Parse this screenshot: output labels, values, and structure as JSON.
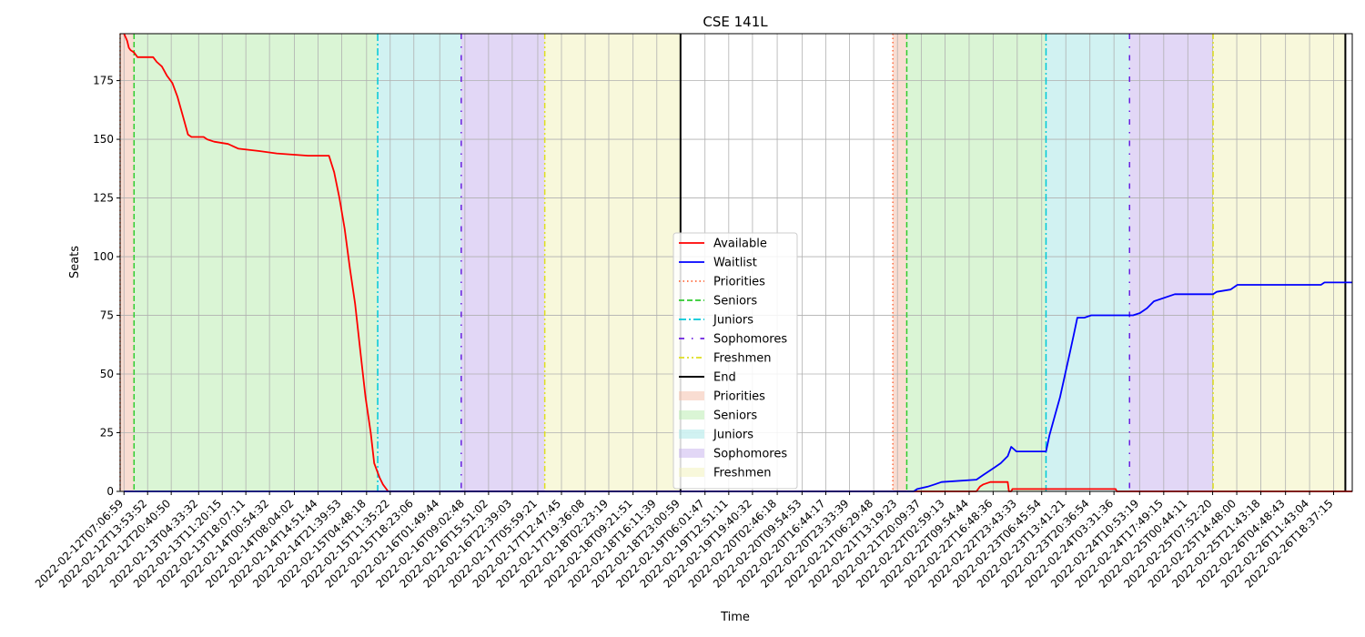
{
  "chart_data": {
    "type": "line",
    "title": "CSE 141L",
    "xlabel": "Time",
    "ylabel": "Seats",
    "ylim": [
      0,
      195
    ],
    "xlim": [
      "2022-02-12T06:00:00",
      "2022-02-26T23:59:00"
    ],
    "yticks": [
      0,
      25,
      50,
      75,
      100,
      125,
      150,
      175
    ],
    "grid": true,
    "legend_position": "lower center",
    "xticks": [
      "2022-02-12T07:06:59",
      "2022-02-12T13:53:52",
      "2022-02-12T20:40:50",
      "2022-02-13T04:33:32",
      "2022-02-13T11:20:15",
      "2022-02-13T18:07:11",
      "2022-02-14T00:54:32",
      "2022-02-14T08:04:02",
      "2022-02-14T14:51:44",
      "2022-02-14T21:39:53",
      "2022-02-15T04:48:18",
      "2022-02-15T11:35:22",
      "2022-02-15T18:23:06",
      "2022-02-16T01:49:44",
      "2022-02-16T09:02:48",
      "2022-02-16T15:51:02",
      "2022-02-16T22:39:03",
      "2022-02-17T05:59:21",
      "2022-02-17T12:47:45",
      "2022-02-17T19:36:08",
      "2022-02-18T02:23:19",
      "2022-02-18T09:21:51",
      "2022-02-18T16:11:39",
      "2022-02-18T23:00:59",
      "2022-02-19T06:01:47",
      "2022-02-19T12:51:11",
      "2022-02-19T19:40:32",
      "2022-02-20T02:46:18",
      "2022-02-20T09:54:53",
      "2022-02-20T16:44:17",
      "2022-02-20T23:33:39",
      "2022-02-21T06:29:48",
      "2022-02-21T13:19:23",
      "2022-02-21T20:09:37",
      "2022-02-22T02:59:13",
      "2022-02-22T09:54:44",
      "2022-02-22T16:48:36",
      "2022-02-22T23:43:33",
      "2022-02-23T06:45:54",
      "2022-02-23T13:41:21",
      "2022-02-23T20:36:54",
      "2022-02-24T03:31:36",
      "2022-02-24T10:53:19",
      "2022-02-24T17:49:15",
      "2022-02-25T00:44:11",
      "2022-02-25T07:52:20",
      "2022-02-25T14:48:00",
      "2022-02-25T21:43:18",
      "2022-02-26T04:48:43",
      "2022-02-26T11:43:04",
      "2022-02-26T18:37:15"
    ],
    "regions": [
      {
        "name": "Priorities",
        "start": "2022-02-12T06:00:00",
        "end": "2022-02-12T10:00:00",
        "color": "#f4bba6"
      },
      {
        "name": "Seniors",
        "start": "2022-02-12T10:00:00",
        "end": "2022-02-15T08:00:00",
        "color": "#b5ecab"
      },
      {
        "name": "Juniors",
        "start": "2022-02-15T08:00:00",
        "end": "2022-02-16T08:00:00",
        "color": "#a3e6e6"
      },
      {
        "name": "Sophomores",
        "start": "2022-02-16T08:00:00",
        "end": "2022-02-17T08:00:00",
        "color": "#c6b0ee"
      },
      {
        "name": "Freshmen",
        "start": "2022-02-17T08:00:00",
        "end": "2022-02-18T23:00:00",
        "color": "#f1f2b8"
      },
      {
        "name": "Priorities",
        "start": "2022-02-21T12:00:00",
        "end": "2022-02-21T16:00:00",
        "color": "#f4bba6"
      },
      {
        "name": "Seniors",
        "start": "2022-02-21T16:00:00",
        "end": "2022-02-23T08:00:00",
        "color": "#b5ecab"
      },
      {
        "name": "Juniors",
        "start": "2022-02-23T08:00:00",
        "end": "2022-02-24T08:00:00",
        "color": "#a3e6e6"
      },
      {
        "name": "Sophomores",
        "start": "2022-02-24T08:00:00",
        "end": "2022-02-25T08:00:00",
        "color": "#c6b0ee"
      },
      {
        "name": "Freshmen",
        "start": "2022-02-25T08:00:00",
        "end": "2022-02-26T22:00:00",
        "color": "#f1f2b8"
      }
    ],
    "vlines": [
      {
        "name": "Priorities",
        "x": "2022-02-12T06:00:00",
        "color": "#ff6a3d",
        "dash": "1.5,3"
      },
      {
        "name": "Seniors",
        "x": "2022-02-12T10:00:00",
        "color": "#2ecc2e",
        "dash": "6,3"
      },
      {
        "name": "Juniors",
        "x": "2022-02-15T08:00:00",
        "color": "#00c8d8",
        "dash": "8,3,2,3"
      },
      {
        "name": "Sophomores",
        "x": "2022-02-16T08:00:00",
        "color": "#6a1fe0",
        "dash": "6,8,1.5,8"
      },
      {
        "name": "Freshmen",
        "x": "2022-02-17T08:00:00",
        "color": "#dede20",
        "dash": "6,3,2,3,2,3"
      },
      {
        "name": "End",
        "x": "2022-02-18T23:00:00",
        "color": "#000000",
        "dash": ""
      },
      {
        "name": "Priorities",
        "x": "2022-02-21T12:00:00",
        "color": "#ff6a3d",
        "dash": "1.5,3"
      },
      {
        "name": "Seniors",
        "x": "2022-02-21T16:00:00",
        "color": "#2ecc2e",
        "dash": "6,3"
      },
      {
        "name": "Juniors",
        "x": "2022-02-23T08:00:00",
        "color": "#00c8d8",
        "dash": "8,3,2,3"
      },
      {
        "name": "Sophomores",
        "x": "2022-02-24T08:00:00",
        "color": "#6a1fe0",
        "dash": "6,8,1.5,8"
      },
      {
        "name": "Freshmen",
        "x": "2022-02-25T08:00:00",
        "color": "#dede20",
        "dash": "6,3,2,3,2,3"
      },
      {
        "name": "End",
        "x": "2022-02-26T22:00:00",
        "color": "#000000",
        "dash": ""
      }
    ],
    "series": [
      {
        "name": "Available",
        "color": "#ff0000",
        "segments": [
          [
            [
              "2022-02-12T07:06:59",
              195
            ],
            [
              "2022-02-12T08:00:00",
              192
            ],
            [
              "2022-02-12T08:30:00",
              189
            ],
            [
              "2022-02-12T09:00:00",
              188
            ],
            [
              "2022-02-12T10:00:00",
              187
            ],
            [
              "2022-02-12T11:00:00",
              185
            ],
            [
              "2022-02-12T15:30:00",
              185
            ],
            [
              "2022-02-12T16:30:00",
              183
            ],
            [
              "2022-02-12T18:00:00",
              181
            ],
            [
              "2022-02-12T19:30:00",
              177
            ],
            [
              "2022-02-12T21:00:00",
              174
            ],
            [
              "2022-02-12T22:30:00",
              168
            ],
            [
              "2022-02-13T00:00:00",
              160
            ],
            [
              "2022-02-13T01:30:00",
              152
            ],
            [
              "2022-02-13T02:30:00",
              151
            ],
            [
              "2022-02-13T06:00:00",
              151
            ],
            [
              "2022-02-13T07:00:00",
              150
            ],
            [
              "2022-02-13T09:00:00",
              149
            ],
            [
              "2022-02-13T13:00:00",
              148
            ],
            [
              "2022-02-13T16:00:00",
              146
            ],
            [
              "2022-02-13T22:00:00",
              145
            ],
            [
              "2022-02-14T03:00:00",
              144
            ],
            [
              "2022-02-14T12:00:00",
              143
            ],
            [
              "2022-02-14T18:00:00",
              143
            ],
            [
              "2022-02-14T19:30:00",
              136
            ],
            [
              "2022-02-14T21:00:00",
              125
            ],
            [
              "2022-02-14T22:30:00",
              112
            ],
            [
              "2022-02-15T00:00:00",
              95
            ],
            [
              "2022-02-15T01:30:00",
              80
            ],
            [
              "2022-02-15T03:00:00",
              60
            ],
            [
              "2022-02-15T04:30:00",
              40
            ],
            [
              "2022-02-15T06:00:00",
              25
            ],
            [
              "2022-02-15T07:00:00",
              12
            ],
            [
              "2022-02-15T08:30:00",
              6
            ],
            [
              "2022-02-15T09:30:00",
              3
            ],
            [
              "2022-02-15T11:00:00",
              0
            ],
            [
              "2022-02-21T16:00:00",
              0
            ],
            [
              "2022-02-22T12:00:00",
              0
            ],
            [
              "2022-02-22T13:00:00",
              2
            ],
            [
              "2022-02-22T14:00:00",
              3
            ],
            [
              "2022-02-22T16:00:00",
              4
            ],
            [
              "2022-02-22T21:00:00",
              4
            ],
            [
              "2022-02-22T21:20:00",
              0
            ],
            [
              "2022-02-22T22:00:00",
              0
            ],
            [
              "2022-02-22T22:20:00",
              1
            ],
            [
              "2022-02-24T04:00:00",
              1
            ],
            [
              "2022-02-24T04:20:00",
              0
            ],
            [
              "2022-02-26T23:59:00",
              0
            ]
          ]
        ]
      },
      {
        "name": "Waitlist",
        "color": "#0000ff",
        "segments": [
          [
            [
              "2022-02-12T07:06:59",
              0
            ],
            [
              "2022-02-21T18:00:00",
              0
            ],
            [
              "2022-02-21T19:00:00",
              1
            ],
            [
              "2022-02-21T22:00:00",
              2
            ],
            [
              "2022-02-22T00:00:00",
              3
            ],
            [
              "2022-02-22T02:00:00",
              4
            ],
            [
              "2022-02-22T12:00:00",
              5
            ],
            [
              "2022-02-22T14:00:00",
              7
            ],
            [
              "2022-02-22T17:00:00",
              10
            ],
            [
              "2022-02-22T19:00:00",
              12
            ],
            [
              "2022-02-22T21:00:00",
              15
            ],
            [
              "2022-02-22T22:00:00",
              19
            ],
            [
              "2022-02-22T23:30:00",
              17
            ],
            [
              "2022-02-23T01:00:00",
              17
            ],
            [
              "2022-02-23T08:00:00",
              17
            ],
            [
              "2022-02-23T09:00:00",
              24
            ],
            [
              "2022-02-23T10:30:00",
              32
            ],
            [
              "2022-02-23T12:00:00",
              40
            ],
            [
              "2022-02-23T13:30:00",
              50
            ],
            [
              "2022-02-23T15:00:00",
              60
            ],
            [
              "2022-02-23T16:00:00",
              67
            ],
            [
              "2022-02-23T17:00:00",
              74
            ],
            [
              "2022-02-23T19:00:00",
              74
            ],
            [
              "2022-02-23T21:00:00",
              75
            ],
            [
              "2022-02-24T09:00:00",
              75
            ],
            [
              "2022-02-24T11:00:00",
              76
            ],
            [
              "2022-02-24T13:00:00",
              78
            ],
            [
              "2022-02-24T15:00:00",
              81
            ],
            [
              "2022-02-24T21:00:00",
              84
            ],
            [
              "2022-02-25T08:00:00",
              84
            ],
            [
              "2022-02-25T09:00:00",
              85
            ],
            [
              "2022-02-25T13:00:00",
              86
            ],
            [
              "2022-02-25T15:00:00",
              88
            ],
            [
              "2022-02-26T15:00:00",
              88
            ],
            [
              "2022-02-26T16:00:00",
              89
            ],
            [
              "2022-02-26T23:59:00",
              89
            ]
          ]
        ]
      }
    ],
    "legend": [
      {
        "label": "Available",
        "kind": "line",
        "color": "#ff0000",
        "dash": ""
      },
      {
        "label": "Waitlist",
        "kind": "line",
        "color": "#0000ff",
        "dash": ""
      },
      {
        "label": "Priorities",
        "kind": "line",
        "color": "#ff6a3d",
        "dash": "1.5,3"
      },
      {
        "label": "Seniors",
        "kind": "line",
        "color": "#2ecc2e",
        "dash": "6,3"
      },
      {
        "label": "Juniors",
        "kind": "line",
        "color": "#00c8d8",
        "dash": "8,3,2,3"
      },
      {
        "label": "Sophomores",
        "kind": "line",
        "color": "#6a1fe0",
        "dash": "6,8,1.5,8"
      },
      {
        "label": "Freshmen",
        "kind": "line",
        "color": "#dede20",
        "dash": "6,3,2,3,2,3"
      },
      {
        "label": "End",
        "kind": "line",
        "color": "#000000",
        "dash": ""
      },
      {
        "label": "Priorities",
        "kind": "patch",
        "color": "#f4bba6"
      },
      {
        "label": "Seniors",
        "kind": "patch",
        "color": "#b5ecab"
      },
      {
        "label": "Juniors",
        "kind": "patch",
        "color": "#a3e6e6"
      },
      {
        "label": "Sophomores",
        "kind": "patch",
        "color": "#c6b0ee"
      },
      {
        "label": "Freshmen",
        "kind": "patch",
        "color": "#f1f2b8"
      }
    ]
  }
}
